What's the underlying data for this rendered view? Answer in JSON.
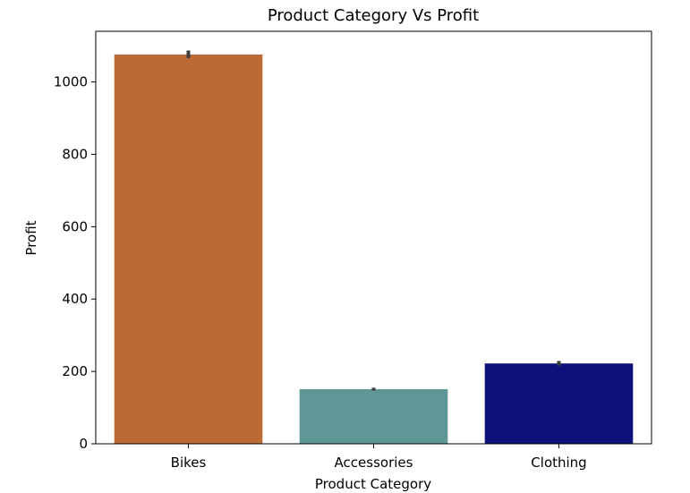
{
  "chart_data": {
    "type": "bar",
    "title": "Product Category Vs Profit",
    "xlabel": "Product Category",
    "ylabel": "Profit",
    "categories": [
      "Bikes",
      "Accessories",
      "Clothing"
    ],
    "values": [
      1076,
      151,
      222
    ],
    "error_bars": [
      [
        1066,
        1087
      ],
      [
        147,
        155
      ],
      [
        216,
        229
      ]
    ],
    "colors": [
      "#BA6A34",
      "#5F9696",
      "#0E117A"
    ],
    "ylim": [
      0,
      1140
    ],
    "yticks": [
      0,
      200,
      400,
      600,
      800,
      1000
    ],
    "ytick_labels": [
      "0",
      "200",
      "400",
      "600",
      "800",
      "1000"
    ],
    "grid": false
  }
}
